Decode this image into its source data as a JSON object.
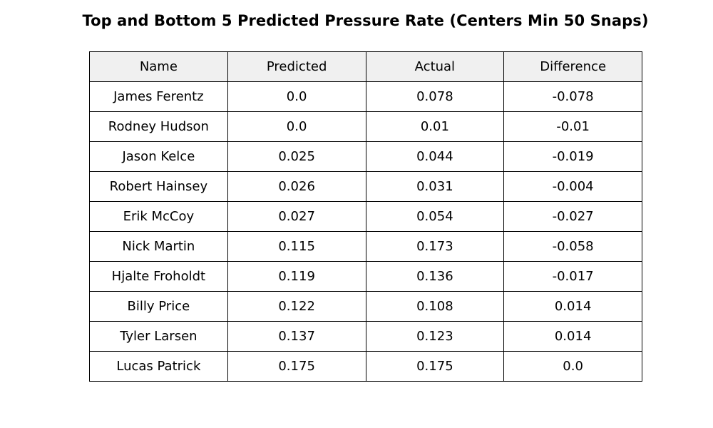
{
  "chart_data": {
    "type": "table",
    "title": "Top and Bottom 5 Predicted Pressure Rate (Centers Min 50 Snaps)",
    "columns": [
      "Name",
      "Predicted",
      "Actual",
      "Difference"
    ],
    "rows": [
      [
        "James Ferentz",
        "0.0",
        "0.078",
        "-0.078"
      ],
      [
        "Rodney Hudson",
        "0.0",
        "0.01",
        "-0.01"
      ],
      [
        "Jason Kelce",
        "0.025",
        "0.044",
        "-0.019"
      ],
      [
        "Robert Hainsey",
        "0.026",
        "0.031",
        "-0.004"
      ],
      [
        "Erik McCoy",
        "0.027",
        "0.054",
        "-0.027"
      ],
      [
        "Nick Martin",
        "0.115",
        "0.173",
        "-0.058"
      ],
      [
        "Hjalte Froholdt",
        "0.119",
        "0.136",
        "-0.017"
      ],
      [
        "Billy Price",
        "0.122",
        "0.108",
        "0.014"
      ],
      [
        "Tyler Larsen",
        "0.137",
        "0.123",
        "0.014"
      ],
      [
        "Lucas Patrick",
        "0.175",
        "0.175",
        "0.0"
      ]
    ],
    "header_color": "#f0f0f0",
    "cell_color": "#ffffff",
    "border_color": "#000000"
  }
}
